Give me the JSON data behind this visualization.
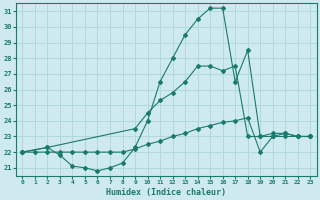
{
  "xlabel": "Humidex (Indice chaleur)",
  "xlim": [
    -0.5,
    23.5
  ],
  "ylim": [
    20.5,
    31.5
  ],
  "xticks": [
    0,
    1,
    2,
    3,
    4,
    5,
    6,
    7,
    8,
    9,
    10,
    11,
    12,
    13,
    14,
    15,
    16,
    17,
    18,
    19,
    20,
    21,
    22,
    23
  ],
  "yticks": [
    21,
    22,
    23,
    24,
    25,
    26,
    27,
    28,
    29,
    30,
    31
  ],
  "background_color": "#ceeaee",
  "line_color": "#1a7a6e",
  "grid_color": "#b0d8de",
  "lines": [
    {
      "x": [
        0,
        1,
        2,
        3,
        4,
        5,
        6,
        7,
        8,
        9,
        10,
        11,
        12,
        13,
        14,
        15,
        16,
        17,
        18,
        19,
        20,
        21,
        22,
        23
      ],
      "y": [
        22,
        22,
        22,
        22,
        22,
        22,
        22,
        22,
        22,
        22.2,
        22.5,
        22.7,
        23,
        23.2,
        23.5,
        23.7,
        23.9,
        24,
        24.2,
        22,
        23,
        23.2,
        23,
        23
      ]
    },
    {
      "x": [
        0,
        2,
        9,
        10,
        11,
        12,
        13,
        14,
        15,
        16,
        17,
        18,
        19,
        20,
        21,
        22,
        23
      ],
      "y": [
        22,
        22.3,
        23.5,
        24.5,
        25.3,
        25.8,
        26.5,
        27.5,
        27.5,
        27.2,
        27.5,
        23,
        23,
        23.2,
        23.2,
        23,
        23
      ]
    },
    {
      "x": [
        0,
        2,
        3,
        4,
        5,
        6,
        7,
        8,
        9,
        10,
        11,
        12,
        13,
        14,
        15,
        16,
        17,
        18,
        19,
        20,
        21,
        22,
        23
      ],
      "y": [
        22,
        22.3,
        21.8,
        21.1,
        21.0,
        20.8,
        21.0,
        21.3,
        22.3,
        24.0,
        26.5,
        28.0,
        29.5,
        30.5,
        31.2,
        31.2,
        26.5,
        28.5,
        23,
        23,
        23,
        23,
        23
      ]
    }
  ]
}
